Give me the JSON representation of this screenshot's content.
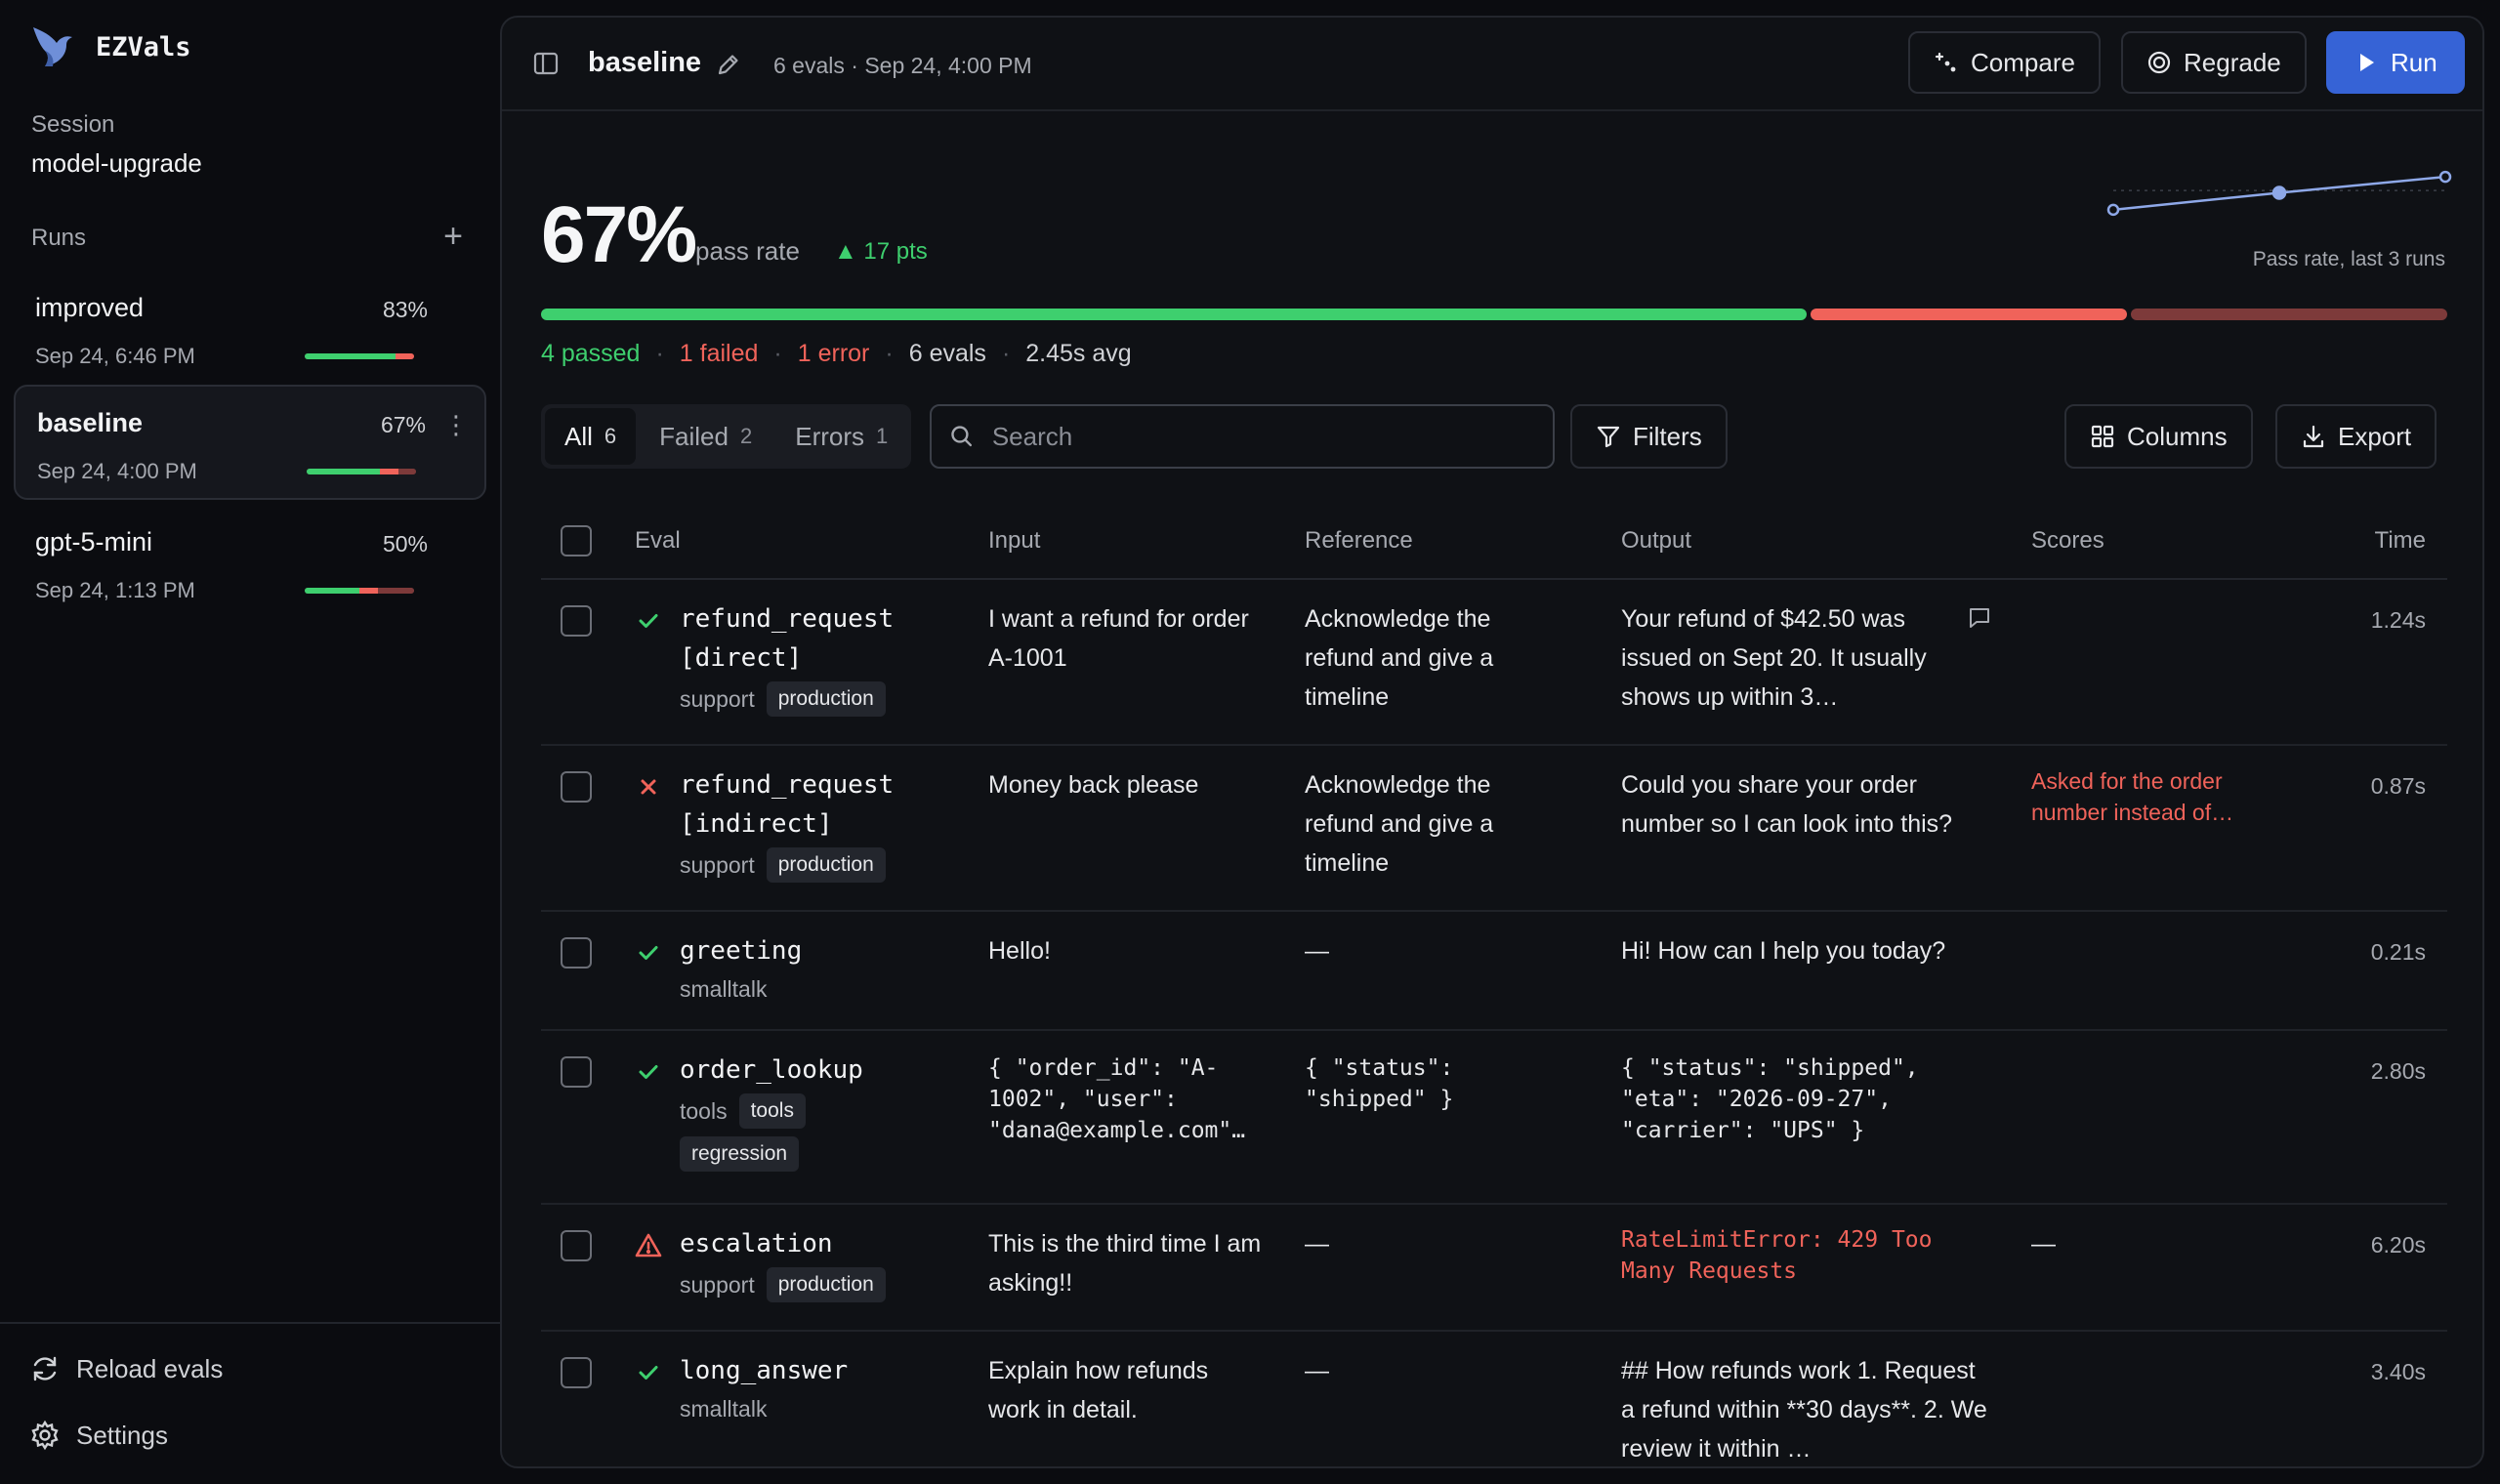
{
  "app": {
    "name": "EZVals"
  },
  "session": {
    "label": "Session",
    "name": "model-upgrade"
  },
  "runs": {
    "label": "Runs",
    "items": [
      {
        "name": "improved",
        "pct": "83%",
        "date": "Sep 24, 6:46 PM",
        "pass_fraction": 0.83,
        "fail_fraction": 0.17,
        "error_fraction": 0.0
      },
      {
        "name": "baseline",
        "pct": "67%",
        "date": "Sep 24, 4:00 PM",
        "pass_fraction": 0.67,
        "fail_fraction": 0.17,
        "error_fraction": 0.16
      },
      {
        "name": "gpt-5-mini",
        "pct": "50%",
        "date": "Sep 24, 1:13 PM",
        "pass_fraction": 0.5,
        "fail_fraction": 0.17,
        "error_fraction": 0.33
      }
    ]
  },
  "sidebar_actions": {
    "reload": "Reload evals",
    "settings": "Settings"
  },
  "header": {
    "title": "baseline",
    "meta": "6 evals · Sep 24, 4:00 PM",
    "compare": "Compare",
    "regrade": "Regrade",
    "run": "Run"
  },
  "summary": {
    "pass_rate": "67%",
    "pass_rate_label": "pass rate",
    "delta": "▲ 17 pts",
    "sparkline_label": "Pass rate, last 3 runs",
    "sparkline_values": [
      50,
      67,
      83
    ],
    "passed": "4 passed",
    "failed": "1 failed",
    "error": "1 error",
    "evals": "6 evals",
    "avg": "2.45s avg",
    "progress": {
      "passed": 4,
      "failed": 1,
      "error": 1
    }
  },
  "colors": {
    "pass": "#3ecf6e",
    "fail": "#f0635a",
    "error": "#7d3a3a",
    "accent": "#3663d6"
  },
  "toolbar": {
    "tabs": [
      {
        "label": "All",
        "count": "6"
      },
      {
        "label": "Failed",
        "count": "2"
      },
      {
        "label": "Errors",
        "count": "1"
      }
    ],
    "search_placeholder": "Search",
    "filters": "Filters",
    "columns": "Columns",
    "export": "Export"
  },
  "table": {
    "headers": {
      "eval": "Eval",
      "input": "Input",
      "reference": "Reference",
      "output": "Output",
      "scores": "Scores",
      "time": "Time"
    },
    "rows": [
      {
        "status": "pass",
        "name": "refund_request\n[direct]",
        "tags_plain": "support",
        "tags_chips": [
          "production"
        ],
        "input": "I want a refund for order A-1001",
        "reference": "Acknowledge the refund and give a timeline",
        "output": "Your refund of $42.50 was issued on Sept 20. It usually shows up within 3…",
        "scores": "",
        "time": "1.24s"
      },
      {
        "status": "fail",
        "name": "refund_request\n[indirect]",
        "tags_plain": "support",
        "tags_chips": [
          "production"
        ],
        "input": "Money back please",
        "reference": "Acknowledge the refund and give a timeline",
        "output": "Could you share your order number so I can look into this?",
        "scores": "Asked for the order number instead of…",
        "time": "0.87s"
      },
      {
        "status": "pass",
        "name": "greeting",
        "tags_plain": "smalltalk",
        "tags_chips": [],
        "input": "Hello!",
        "reference": "—",
        "output": "Hi! How can I help you today?",
        "scores": "",
        "time": "0.21s"
      },
      {
        "status": "pass",
        "name": "order_lookup",
        "tags_plain": "tools",
        "tags_chips": [
          "tools",
          "regression"
        ],
        "input": "{ \"order_id\": \"A-1002\", \"user\": \"dana@example.com\"…",
        "reference": "{ \"status\": \"shipped\" }",
        "output": "{ \"status\": \"shipped\", \"eta\": \"2026-09-27\", \"carrier\": \"UPS\" }",
        "scores": "",
        "time": "2.80s"
      },
      {
        "status": "error",
        "name": "escalation",
        "tags_plain": "support",
        "tags_chips": [
          "production"
        ],
        "input": "This is the third time I am asking!!",
        "reference": "—",
        "output": "RateLimitError: 429 Too Many Requests",
        "scores": "—",
        "time": "6.20s"
      },
      {
        "status": "pass",
        "name": "long_answer",
        "tags_plain": "smalltalk",
        "tags_chips": [],
        "input": "Explain how refunds work in detail.",
        "reference": "—",
        "output": "## How refunds work 1. Request a refund within **30 days**. 2. We review it within …",
        "scores": "",
        "time": "3.40s"
      }
    ]
  }
}
